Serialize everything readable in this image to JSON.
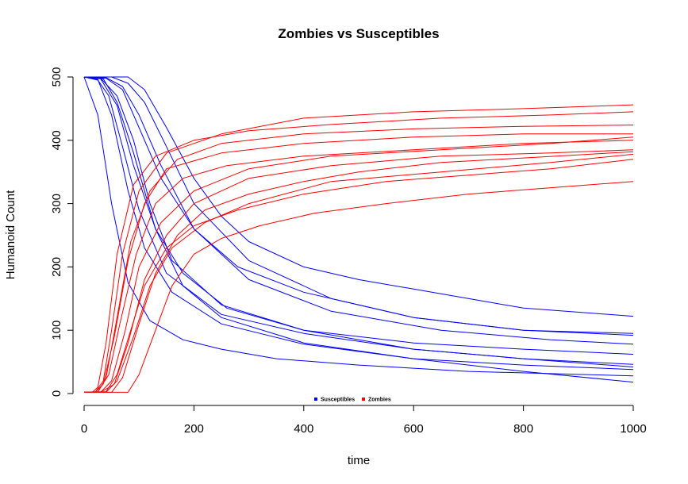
{
  "chart_data": {
    "type": "line",
    "title": "Zombies vs Susceptibles",
    "xlabel": "time",
    "ylabel": "Humanoid Count",
    "xlim": [
      0,
      1000
    ],
    "ylim": [
      0,
      500
    ],
    "xticks": [
      "0",
      "200",
      "400",
      "600",
      "800",
      "1000"
    ],
    "yticks": [
      "0",
      "100",
      "200",
      "300",
      "400",
      "500"
    ],
    "grid": false,
    "legend": {
      "placement": "bottom-center",
      "entries": [
        {
          "label": "Susceptibles",
          "color": "#0000ff"
        },
        {
          "label": "Zombies",
          "color": "#ff0000"
        }
      ]
    },
    "series": [
      {
        "group": "Susceptibles",
        "color": "#0000ff",
        "x": [
          0,
          25,
          50,
          80,
          120,
          180,
          250,
          350,
          500,
          700,
          1000
        ],
        "y": [
          500,
          440,
          300,
          175,
          115,
          85,
          70,
          55,
          45,
          35,
          28
        ]
      },
      {
        "group": "Susceptibles",
        "color": "#0000ff",
        "x": [
          0,
          25,
          45,
          70,
          100,
          150,
          250,
          400,
          600,
          800,
          1000
        ],
        "y": [
          500,
          495,
          470,
          390,
          290,
          190,
          125,
          95,
          70,
          55,
          42
        ]
      },
      {
        "group": "Susceptibles",
        "color": "#0000ff",
        "x": [
          0,
          25,
          50,
          80,
          110,
          160,
          250,
          400,
          600,
          800,
          1000
        ],
        "y": [
          500,
          496,
          440,
          320,
          230,
          160,
          110,
          78,
          55,
          45,
          38
        ]
      },
      {
        "group": "Susceptibles",
        "color": "#0000ff",
        "x": [
          0,
          30,
          60,
          90,
          130,
          180,
          260,
          400,
          600,
          800,
          1000
        ],
        "y": [
          500,
          497,
          455,
          360,
          260,
          190,
          135,
          100,
          80,
          70,
          62
        ]
      },
      {
        "group": "Susceptibles",
        "color": "#0000ff",
        "x": [
          0,
          30,
          60,
          90,
          120,
          160,
          250,
          400,
          600,
          800,
          1000
        ],
        "y": [
          500,
          498,
          470,
          400,
          300,
          210,
          140,
          100,
          70,
          55,
          46
        ]
      },
      {
        "group": "Susceptibles",
        "color": "#0000ff",
        "x": [
          0,
          40,
          70,
          100,
          140,
          200,
          280,
          400,
          600,
          800,
          1000
        ],
        "y": [
          500,
          498,
          480,
          420,
          340,
          260,
          200,
          160,
          120,
          100,
          95
        ]
      },
      {
        "group": "Susceptibles",
        "color": "#0000ff",
        "x": [
          0,
          40,
          70,
          100,
          140,
          200,
          300,
          450,
          650,
          850,
          1000
        ],
        "y": [
          500,
          499,
          485,
          440,
          360,
          260,
          180,
          130,
          100,
          85,
          78
        ]
      },
      {
        "group": "Susceptibles",
        "color": "#0000ff",
        "x": [
          0,
          50,
          80,
          110,
          150,
          200,
          300,
          450,
          600,
          800,
          1000
        ],
        "y": [
          500,
          500,
          490,
          460,
          390,
          300,
          210,
          150,
          120,
          100,
          92
        ]
      },
      {
        "group": "Susceptibles",
        "color": "#0000ff",
        "x": [
          0,
          80,
          110,
          150,
          200,
          250,
          300,
          400,
          500,
          600,
          800,
          1000
        ],
        "y": [
          500,
          500,
          480,
          420,
          340,
          280,
          240,
          200,
          180,
          165,
          135,
          122
        ]
      },
      {
        "group": "Susceptibles",
        "color": "#0000ff",
        "x": [
          0,
          35,
          60,
          90,
          130,
          180,
          250,
          400,
          600,
          800,
          1000
        ],
        "y": [
          500,
          497,
          460,
          380,
          260,
          170,
          120,
          80,
          55,
          35,
          18
        ]
      },
      {
        "group": "Zombies",
        "color": "#ff0000",
        "x": [
          0,
          15,
          25,
          40,
          60,
          90,
          130,
          200,
          300,
          450,
          650,
          850,
          1000
        ],
        "y": [
          2,
          2,
          10,
          80,
          220,
          330,
          375,
          400,
          415,
          425,
          435,
          440,
          445
        ]
      },
      {
        "group": "Zombies",
        "color": "#ff0000",
        "x": [
          0,
          20,
          35,
          50,
          70,
          100,
          150,
          250,
          400,
          600,
          800,
          1000
        ],
        "y": [
          2,
          2,
          20,
          100,
          220,
          320,
          380,
          410,
          435,
          445,
          450,
          456
        ]
      },
      {
        "group": "Zombies",
        "color": "#ff0000",
        "x": [
          0,
          20,
          35,
          55,
          80,
          110,
          150,
          250,
          400,
          600,
          800,
          1000
        ],
        "y": [
          2,
          2,
          15,
          90,
          210,
          300,
          355,
          380,
          395,
          405,
          410,
          410
        ]
      },
      {
        "group": "Zombies",
        "color": "#ff0000",
        "x": [
          0,
          25,
          40,
          60,
          85,
          120,
          170,
          250,
          400,
          600,
          800,
          1000
        ],
        "y": [
          2,
          2,
          25,
          120,
          240,
          320,
          370,
          395,
          410,
          418,
          422,
          424
        ]
      },
      {
        "group": "Zombies",
        "color": "#ff0000",
        "x": [
          0,
          25,
          45,
          65,
          95,
          130,
          180,
          260,
          400,
          600,
          800,
          1000
        ],
        "y": [
          2,
          3,
          30,
          110,
          220,
          300,
          340,
          360,
          375,
          385,
          395,
          400
        ]
      },
      {
        "group": "Zombies",
        "color": "#ff0000",
        "x": [
          0,
          30,
          50,
          75,
          100,
          140,
          200,
          300,
          450,
          650,
          850,
          1000
        ],
        "y": [
          2,
          2,
          20,
          100,
          200,
          270,
          320,
          355,
          375,
          385,
          395,
          405
        ]
      },
      {
        "group": "Zombies",
        "color": "#ff0000",
        "x": [
          0,
          30,
          55,
          80,
          110,
          150,
          200,
          300,
          450,
          650,
          850,
          1000
        ],
        "y": [
          2,
          2,
          15,
          80,
          180,
          250,
          300,
          340,
          360,
          375,
          380,
          385
        ]
      },
      {
        "group": "Zombies",
        "color": "#ff0000",
        "x": [
          0,
          40,
          60,
          90,
          120,
          160,
          220,
          300,
          450,
          650,
          850,
          1000
        ],
        "y": [
          2,
          2,
          20,
          90,
          170,
          230,
          270,
          300,
          335,
          350,
          365,
          378
        ]
      },
      {
        "group": "Zombies",
        "color": "#ff0000",
        "x": [
          0,
          50,
          70,
          100,
          130,
          170,
          220,
          300,
          400,
          500,
          650,
          800,
          1000
        ],
        "y": [
          2,
          2,
          25,
          110,
          190,
          250,
          290,
          315,
          335,
          350,
          365,
          372,
          382
        ]
      },
      {
        "group": "Zombies",
        "color": "#ff0000",
        "x": [
          0,
          80,
          100,
          130,
          160,
          200,
          250,
          320,
          420,
          550,
          700,
          850,
          1000
        ],
        "y": [
          2,
          2,
          30,
          100,
          170,
          220,
          245,
          265,
          285,
          300,
          315,
          325,
          335
        ]
      },
      {
        "group": "Zombies",
        "color": "#ff0000",
        "x": [
          0,
          40,
          60,
          85,
          110,
          150,
          200,
          280,
          400,
          550,
          700,
          850,
          1000
        ],
        "y": [
          2,
          3,
          30,
          100,
          170,
          230,
          265,
          290,
          315,
          335,
          345,
          355,
          370
        ]
      }
    ]
  }
}
